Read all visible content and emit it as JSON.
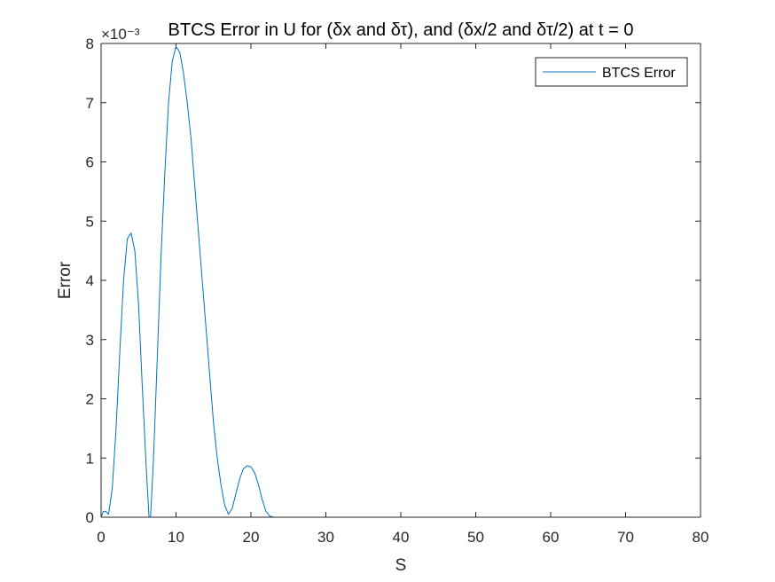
{
  "chart_data": {
    "type": "line",
    "title": "BTCS Error in U for (δx and δτ), and (δx/2 and δτ/2) at t = 0",
    "xlabel": "S",
    "ylabel": "Error",
    "y_exponent_label": "×10⁻³",
    "xlim": [
      0,
      80
    ],
    "ylim": [
      0,
      8
    ],
    "x_ticks": [
      "0",
      "10",
      "20",
      "30",
      "40",
      "50",
      "60",
      "70",
      "80"
    ],
    "y_ticks": [
      "0",
      "1",
      "2",
      "3",
      "4",
      "5",
      "6",
      "7",
      "8"
    ],
    "grid": false,
    "legend_position": "top-right",
    "series": [
      {
        "name": "BTCS Error",
        "color": "#0072BD",
        "x": [
          0,
          0.3,
          0.6,
          1.0,
          1.5,
          2.0,
          2.5,
          3.0,
          3.5,
          4.0,
          4.5,
          5.0,
          5.5,
          6.0,
          6.4,
          6.6,
          7.0,
          7.5,
          8.0,
          8.5,
          9.0,
          9.5,
          10.0,
          10.5,
          11.0,
          11.5,
          12.0,
          12.5,
          13.0,
          13.5,
          14.0,
          14.5,
          15.0,
          15.5,
          16.0,
          16.5,
          17.0,
          17.5,
          18.0,
          18.5,
          19.0,
          19.5,
          20.0,
          20.5,
          21.0,
          21.5,
          22.0,
          22.5,
          23.0,
          30,
          40,
          50,
          60,
          70,
          74
        ],
        "y": [
          0.0,
          0.1,
          0.1,
          0.05,
          0.5,
          1.5,
          2.8,
          4.0,
          4.7,
          4.8,
          4.5,
          3.6,
          2.2,
          0.9,
          0.0,
          0.0,
          1.0,
          2.7,
          4.4,
          5.8,
          7.0,
          7.7,
          7.95,
          7.85,
          7.5,
          7.0,
          6.4,
          5.6,
          4.8,
          4.0,
          3.2,
          2.4,
          1.6,
          1.0,
          0.55,
          0.2,
          0.05,
          0.15,
          0.4,
          0.65,
          0.82,
          0.87,
          0.85,
          0.75,
          0.55,
          0.3,
          0.1,
          0.02,
          0.0,
          0.0,
          0.0,
          0.0,
          0.0,
          0.0,
          0.0
        ]
      }
    ]
  }
}
